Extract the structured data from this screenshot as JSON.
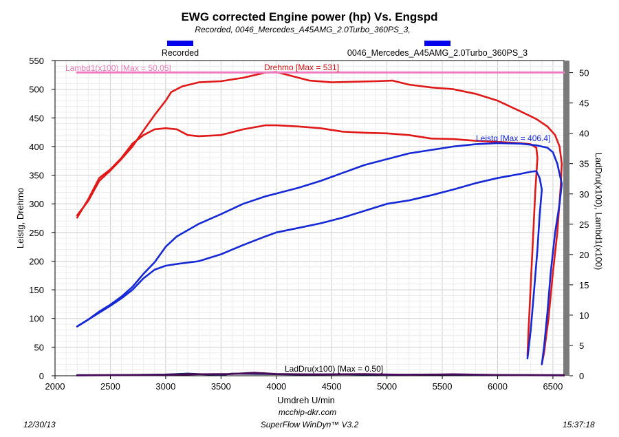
{
  "chart_data": {
    "type": "line",
    "title": "EWG corrected Engine power (hp) Vs. Engspd",
    "subtitle": "Recorded, 0046_Mercedes_A45AMG_2.0Turbo_360PS_3,",
    "legend": [
      {
        "label": "Recorded",
        "color": "#0000ee"
      },
      {
        "label": "0046_Mercedes_A45AMG_2.0Turbo_360PS_3",
        "color": "#0000ee"
      }
    ],
    "xlabel": "Umdreh U/min",
    "ylabel_left": "Leistg, Drehmo",
    "ylabel_right": "LadDru(x100), Lambd1(x100)",
    "xlim": [
      2000,
      6600
    ],
    "ylim_left": [
      0,
      550
    ],
    "ylim_right": [
      0,
      52
    ],
    "x_ticks": [
      "2000",
      "2500",
      "3000",
      "3500",
      "4000",
      "4500",
      "5000",
      "5500",
      "6000",
      "6500"
    ],
    "y_left_ticks": [
      "0",
      "50",
      "100",
      "150",
      "200",
      "250",
      "300",
      "350",
      "400",
      "450",
      "500",
      "550"
    ],
    "y_right_ticks": [
      "0",
      "5",
      "10",
      "15",
      "20",
      "25",
      "30",
      "35",
      "40",
      "45",
      "50"
    ],
    "annotations": {
      "lambda": "Lambd1(x100) [Max = 50.05]",
      "drehmo": "Drehmo [Max = 531]",
      "leistg": "Leistg [Max = 406.4]",
      "laddru": "LadDru(x100) [Max = 0.50]"
    },
    "series": [
      {
        "name": "Drehmo (run 1)",
        "axis": "left",
        "color": "#e01818",
        "points": [
          [
            2200,
            280
          ],
          [
            2300,
            305
          ],
          [
            2400,
            340
          ],
          [
            2500,
            358
          ],
          [
            2600,
            378
          ],
          [
            2700,
            400
          ],
          [
            2800,
            428
          ],
          [
            2900,
            455
          ],
          [
            3000,
            480
          ],
          [
            3050,
            495
          ],
          [
            3150,
            505
          ],
          [
            3300,
            512
          ],
          [
            3500,
            514
          ],
          [
            3700,
            520
          ],
          [
            3900,
            529
          ],
          [
            4000,
            530
          ],
          [
            4100,
            525
          ],
          [
            4300,
            515
          ],
          [
            4500,
            512
          ],
          [
            4700,
            513
          ],
          [
            4900,
            514
          ],
          [
            5050,
            515
          ],
          [
            5200,
            508
          ],
          [
            5400,
            503
          ],
          [
            5600,
            500
          ],
          [
            5800,
            492
          ],
          [
            6000,
            480
          ],
          [
            6200,
            462
          ],
          [
            6350,
            448
          ],
          [
            6450,
            435
          ],
          [
            6520,
            420
          ],
          [
            6560,
            400
          ],
          [
            6580,
            370
          ],
          [
            6570,
            330
          ],
          [
            6540,
            250
          ],
          [
            6500,
            180
          ],
          [
            6460,
            100
          ],
          [
            6420,
            40
          ],
          [
            6400,
            20
          ]
        ]
      },
      {
        "name": "Drehmo (run 2)",
        "axis": "left",
        "color": "#e01818",
        "points": [
          [
            2200,
            276
          ],
          [
            2300,
            308
          ],
          [
            2400,
            345
          ],
          [
            2500,
            360
          ],
          [
            2600,
            380
          ],
          [
            2700,
            405
          ],
          [
            2800,
            420
          ],
          [
            2900,
            430
          ],
          [
            3000,
            432
          ],
          [
            3100,
            430
          ],
          [
            3200,
            420
          ],
          [
            3300,
            418
          ],
          [
            3500,
            420
          ],
          [
            3700,
            430
          ],
          [
            3900,
            437
          ],
          [
            4000,
            437
          ],
          [
            4200,
            435
          ],
          [
            4400,
            432
          ],
          [
            4600,
            426
          ],
          [
            4800,
            424
          ],
          [
            5000,
            423
          ],
          [
            5200,
            420
          ],
          [
            5400,
            414
          ],
          [
            5600,
            413
          ],
          [
            5800,
            410
          ],
          [
            6000,
            408
          ],
          [
            6200,
            406
          ],
          [
            6300,
            404
          ],
          [
            6350,
            398
          ],
          [
            6360,
            380
          ],
          [
            6340,
            320
          ],
          [
            6320,
            240
          ],
          [
            6300,
            160
          ],
          [
            6280,
            80
          ],
          [
            6270,
            35
          ]
        ]
      },
      {
        "name": "Leistg (run 1)",
        "axis": "left",
        "color": "#1428d6",
        "points": [
          [
            2200,
            86
          ],
          [
            2300,
            98
          ],
          [
            2400,
            112
          ],
          [
            2500,
            124
          ],
          [
            2600,
            138
          ],
          [
            2700,
            155
          ],
          [
            2800,
            178
          ],
          [
            2900,
            198
          ],
          [
            3000,
            225
          ],
          [
            3100,
            243
          ],
          [
            3300,
            265
          ],
          [
            3500,
            282
          ],
          [
            3700,
            300
          ],
          [
            3900,
            313
          ],
          [
            4000,
            318
          ],
          [
            4200,
            328
          ],
          [
            4400,
            340
          ],
          [
            4600,
            354
          ],
          [
            4800,
            368
          ],
          [
            5000,
            378
          ],
          [
            5200,
            388
          ],
          [
            5400,
            394
          ],
          [
            5600,
            400
          ],
          [
            5800,
            404
          ],
          [
            6000,
            406
          ],
          [
            6200,
            405
          ],
          [
            6350,
            402
          ],
          [
            6450,
            398
          ],
          [
            6500,
            390
          ],
          [
            6540,
            370
          ],
          [
            6580,
            335
          ],
          [
            6560,
            300
          ],
          [
            6520,
            250
          ],
          [
            6480,
            180
          ],
          [
            6450,
            110
          ],
          [
            6420,
            50
          ],
          [
            6400,
            20
          ]
        ]
      },
      {
        "name": "Leistg (run 2)",
        "axis": "left",
        "color": "#1428d6",
        "points": [
          [
            2200,
            86
          ],
          [
            2300,
            98
          ],
          [
            2400,
            110
          ],
          [
            2500,
            122
          ],
          [
            2600,
            135
          ],
          [
            2700,
            150
          ],
          [
            2800,
            170
          ],
          [
            2900,
            185
          ],
          [
            3000,
            192
          ],
          [
            3100,
            195
          ],
          [
            3300,
            200
          ],
          [
            3500,
            212
          ],
          [
            3700,
            228
          ],
          [
            3900,
            243
          ],
          [
            4000,
            250
          ],
          [
            4200,
            258
          ],
          [
            4400,
            266
          ],
          [
            4600,
            276
          ],
          [
            4800,
            288
          ],
          [
            5000,
            300
          ],
          [
            5200,
            306
          ],
          [
            5400,
            315
          ],
          [
            5600,
            325
          ],
          [
            5800,
            336
          ],
          [
            6000,
            345
          ],
          [
            6200,
            352
          ],
          [
            6300,
            356
          ],
          [
            6350,
            357
          ],
          [
            6380,
            345
          ],
          [
            6400,
            325
          ],
          [
            6380,
            280
          ],
          [
            6360,
            220
          ],
          [
            6330,
            150
          ],
          [
            6300,
            80
          ],
          [
            6270,
            30
          ]
        ]
      },
      {
        "name": "Lambd1(x100)",
        "axis": "right",
        "color": "#f07ac0",
        "points": [
          [
            2200,
            50.05
          ],
          [
            6600,
            50.05
          ]
        ]
      },
      {
        "name": "LadDru(x100) (run 1)",
        "axis": "right",
        "color": "#1e1e5a",
        "points": [
          [
            2200,
            0.1
          ],
          [
            2600,
            0.12
          ],
          [
            3000,
            0.2
          ],
          [
            3200,
            0.35
          ],
          [
            3500,
            0.12
          ],
          [
            3600,
            0.35
          ],
          [
            3900,
            0.28
          ],
          [
            4200,
            0.2
          ],
          [
            4600,
            0.25
          ],
          [
            5000,
            0.15
          ],
          [
            5400,
            0.2
          ],
          [
            5800,
            0.15
          ],
          [
            6200,
            0.12
          ],
          [
            6600,
            0.1
          ]
        ]
      },
      {
        "name": "LadDru(x100) (run 2)",
        "axis": "right",
        "color": "#4a0a5a",
        "points": [
          [
            2200,
            0.05
          ],
          [
            2600,
            0.1
          ],
          [
            3000,
            0.12
          ],
          [
            3300,
            0.25
          ],
          [
            3600,
            0.3
          ],
          [
            3800,
            0.5
          ],
          [
            4000,
            0.3
          ],
          [
            4400,
            0.22
          ],
          [
            4800,
            0.28
          ],
          [
            5200,
            0.15
          ],
          [
            5600,
            0.25
          ],
          [
            6000,
            0.12
          ],
          [
            6400,
            0.08
          ],
          [
            6600,
            0.05
          ]
        ]
      }
    ]
  },
  "footer": {
    "date": "12/30/13",
    "site": "mcchip-dkr.com",
    "software": "SuperFlow WinDyn™  V3.2",
    "time": "15:37:18"
  }
}
